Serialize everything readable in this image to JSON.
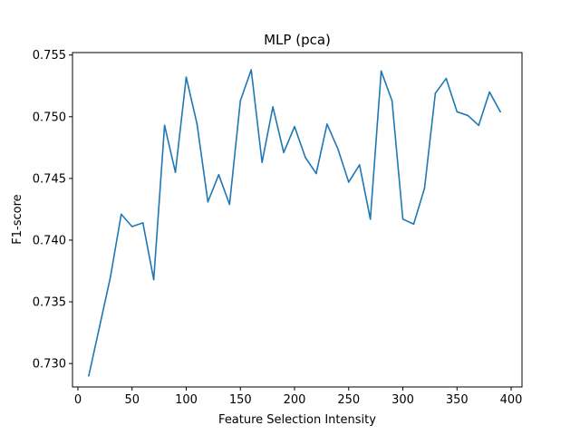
{
  "chart_data": {
    "type": "line",
    "title": "MLP (pca)",
    "xlabel": "Feature Selection Intensity",
    "ylabel": "F1-score",
    "xlim": [
      -5,
      410
    ],
    "ylim": [
      0.7281,
      0.7552
    ],
    "xticks": [
      0,
      50,
      100,
      150,
      200,
      250,
      300,
      350,
      400
    ],
    "yticks": [
      0.73,
      0.735,
      0.74,
      0.745,
      0.75,
      0.755
    ],
    "xtick_labels": [
      "0",
      "50",
      "100",
      "150",
      "200",
      "250",
      "300",
      "350",
      "400"
    ],
    "ytick_labels": [
      "0.730",
      "0.735",
      "0.740",
      "0.745",
      "0.750",
      "0.755"
    ],
    "grid": false,
    "series": [
      {
        "color": "#1f77b4",
        "x": [
          10,
          20,
          30,
          40,
          50,
          60,
          70,
          80,
          90,
          100,
          110,
          120,
          130,
          140,
          150,
          160,
          170,
          180,
          190,
          200,
          210,
          220,
          230,
          240,
          250,
          260,
          270,
          280,
          290,
          300,
          310,
          320,
          330,
          340,
          350,
          360,
          370,
          380,
          390
        ],
        "y": [
          0.729,
          0.733,
          0.737,
          0.7421,
          0.7411,
          0.7414,
          0.7368,
          0.7493,
          0.7455,
          0.7532,
          0.7494,
          0.7431,
          0.7453,
          0.7429,
          0.7513,
          0.7538,
          0.7463,
          0.7508,
          0.7471,
          0.7492,
          0.7467,
          0.7454,
          0.7494,
          0.7474,
          0.7447,
          0.7461,
          0.7417,
          0.7537,
          0.7513,
          0.7417,
          0.7413,
          0.7442,
          0.7519,
          0.7531,
          0.7504,
          0.7501,
          0.7493,
          0.752,
          0.7504
        ]
      }
    ]
  }
}
